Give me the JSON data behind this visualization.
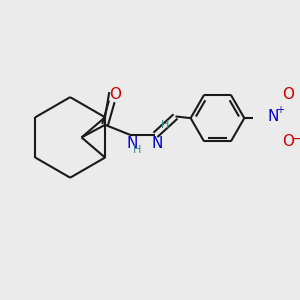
{
  "background_color": "#ebebeb",
  "bond_color": "#1a1a1a",
  "bond_width": 1.5,
  "figsize": [
    3.0,
    3.0
  ],
  "dpi": 100,
  "xlim": [
    0,
    300
  ],
  "ylim": [
    0,
    300
  ]
}
